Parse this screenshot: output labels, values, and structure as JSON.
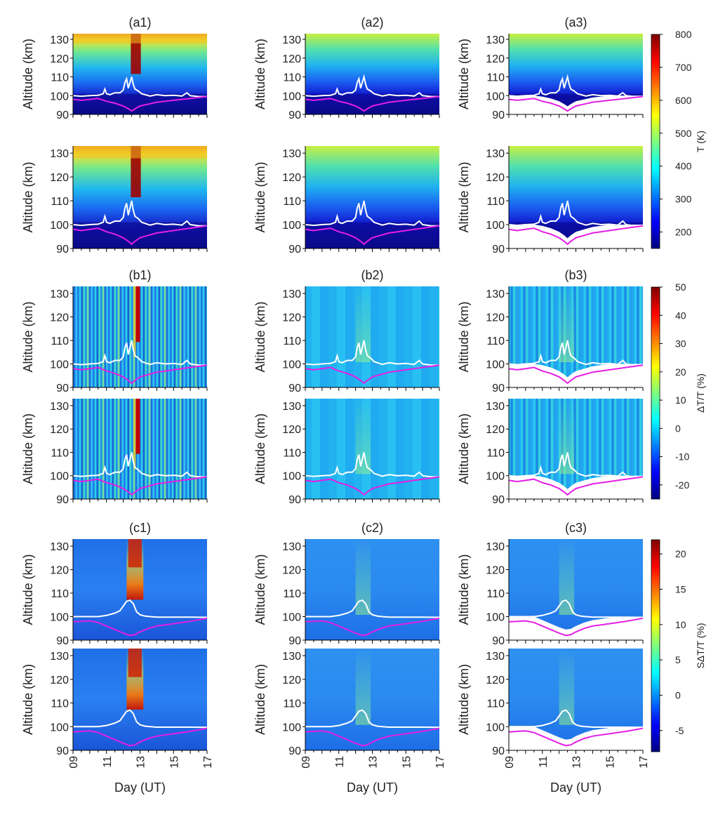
{
  "figure": {
    "rows": [
      {
        "id": "a",
        "titles": [
          "(a1)",
          "(a2)",
          "(a3)"
        ],
        "colorbar": {
          "label": "T (K)",
          "ticks": [
            200,
            300,
            400,
            500,
            600,
            700,
            800
          ],
          "range": [
            150,
            800
          ]
        }
      },
      {
        "id": "b",
        "titles": [
          "(b1)",
          "(b2)",
          "(b3)"
        ],
        "colorbar": {
          "label": "ΔT/T (%)",
          "ticks": [
            -20,
            -10,
            0,
            10,
            20,
            30,
            40,
            50
          ],
          "range": [
            -25,
            50
          ]
        }
      },
      {
        "id": "c",
        "titles": [
          "(c1)",
          "(c2)",
          "(c3)"
        ],
        "colorbar": {
          "label": "SΔT/T (%)",
          "ticks": [
            -5,
            0,
            5,
            10,
            15,
            20
          ],
          "range": [
            -8,
            22
          ]
        }
      }
    ],
    "colors": {
      "upper_line": "#ffffff",
      "lower_line": "#e51ee5"
    }
  },
  "chart_data": {
    "type": "heatmap",
    "panel_layout": "3 rows (a,b,c) x 3 columns x 2 stacked sub-panels",
    "ylabel": "Altitude (km)",
    "xlabel": "Day (UT)",
    "ylim": [
      90,
      133
    ],
    "yticks": [
      90,
      100,
      110,
      120,
      130
    ],
    "xlim": [
      9,
      17
    ],
    "xticks": [
      "09",
      "11",
      "13",
      "15",
      "17"
    ],
    "lines": {
      "upper": {
        "days": [
          9.0,
          9.5,
          10.0,
          10.5,
          10.8,
          10.9,
          11.0,
          11.2,
          11.5,
          11.8,
          12.0,
          12.1,
          12.2,
          12.3,
          12.4,
          12.5,
          12.6,
          12.7,
          12.9,
          13.1,
          13.3,
          13.6,
          14.0,
          14.5,
          15.0,
          15.5,
          15.8,
          16.0,
          16.5,
          17.0
        ],
        "altitude": [
          100.0,
          99.7,
          100.0,
          100.2,
          101.0,
          103.5,
          101.0,
          100.5,
          101.5,
          101.5,
          103.0,
          107.0,
          109.0,
          104.0,
          107.0,
          110.0,
          106.0,
          103.5,
          102.5,
          101.0,
          100.5,
          99.8,
          100.5,
          100.0,
          100.2,
          99.8,
          101.5,
          100.0,
          99.5,
          99.5
        ]
      },
      "lower": {
        "days": [
          9.0,
          9.5,
          10.0,
          10.5,
          11.0,
          11.5,
          12.0,
          12.3,
          12.5,
          12.7,
          13.0,
          13.5,
          14.0,
          14.5,
          15.0,
          15.5,
          16.0,
          16.5,
          17.0
        ],
        "altitude": [
          98.0,
          97.5,
          98.0,
          98.5,
          97.0,
          96.0,
          94.5,
          93.0,
          91.8,
          93.0,
          94.5,
          95.5,
          96.5,
          97.0,
          97.5,
          98.0,
          98.5,
          99.0,
          99.5
        ]
      },
      "upper_smooth": {
        "days": [
          9.0,
          10.0,
          10.5,
          11.0,
          11.5,
          11.8,
          12.0,
          12.2,
          12.4,
          12.6,
          12.8,
          13.0,
          13.3,
          13.6,
          14.0,
          15.0,
          16.0,
          17.0
        ],
        "altitude": [
          100.0,
          100.0,
          100.0,
          100.5,
          101.5,
          102.5,
          104.5,
          106.5,
          107.0,
          105.5,
          102.0,
          100.8,
          100.2,
          100.0,
          99.8,
          99.8,
          99.8,
          99.7
        ]
      },
      "lower_smooth": {
        "days": [
          9.0,
          9.5,
          10.0,
          10.5,
          11.0,
          11.5,
          12.0,
          12.4,
          12.7,
          13.0,
          13.5,
          14.0,
          15.0,
          16.0,
          17.0
        ],
        "altitude": [
          97.8,
          98.0,
          98.2,
          97.5,
          96.0,
          94.5,
          93.0,
          92.0,
          92.3,
          93.5,
          95.0,
          96.0,
          97.0,
          98.0,
          99.3
        ]
      }
    }
  }
}
